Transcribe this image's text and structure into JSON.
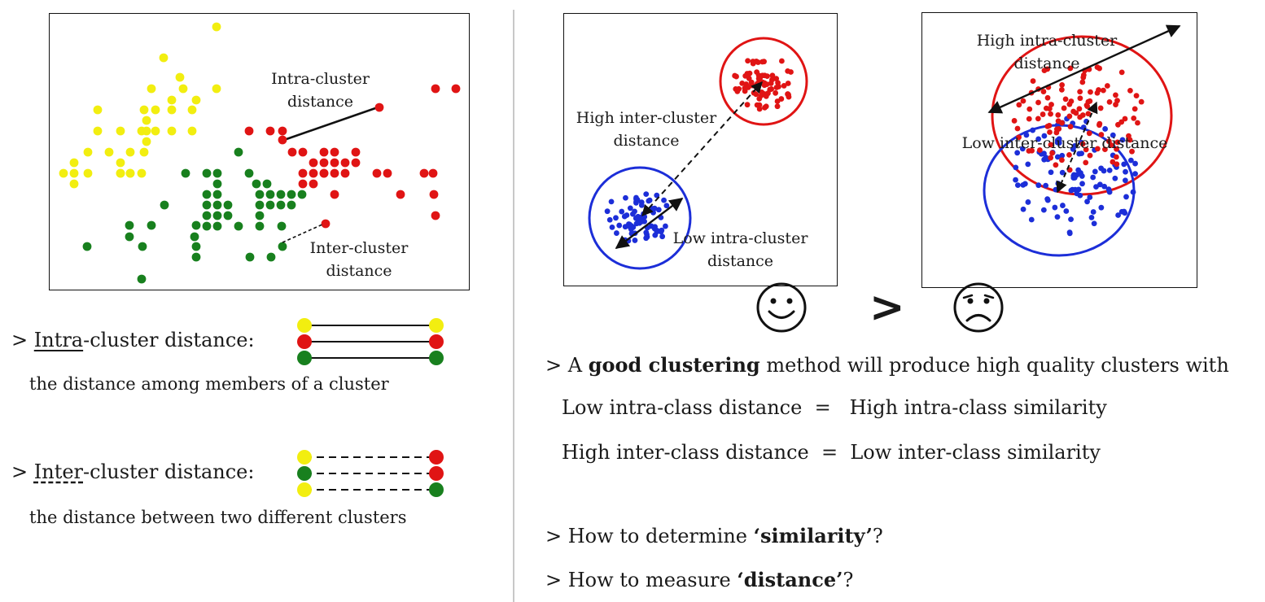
{
  "left_plot": {
    "labels": {
      "intra_line1": "Intra-cluster",
      "intra_line2": "distance",
      "inter_line1": "Inter-cluster",
      "inter_line2": "distance"
    }
  },
  "intra_definition": {
    "prefix": "> ",
    "term": "Intra",
    "rest": "-cluster distance:",
    "description": "the distance among members of a cluster"
  },
  "inter_definition": {
    "prefix": "> ",
    "term": "Inter",
    "rest": "-cluster distance:",
    "description": "the distance between two different clusters"
  },
  "good_plot": {
    "label_high_inter_1": "High inter-cluster",
    "label_high_inter_2": "distance",
    "label_low_intra_1": "Low intra-cluster",
    "label_low_intra_2": "distance"
  },
  "bad_plot": {
    "label_high_intra_1": "High intra-cluster",
    "label_high_intra_2": "distance",
    "label_low_inter": "Low inter-cluster distance"
  },
  "comparison_symbol": ">",
  "colors": {
    "yellow": "#f2ee10",
    "red": "#e01414",
    "green": "#18801e",
    "blue": "#1c2ed8"
  },
  "statements": {
    "good_prefix": "> A ",
    "good_bold": "good clustering",
    "good_rest": " method will produce high quality clusters with",
    "intra_eq_left": "Low intra-class distance",
    "intra_eq_sign": "=",
    "intra_eq_right": "High intra-class similarity",
    "inter_eq_left": "High inter-class distance",
    "inter_eq_sign": "=",
    "inter_eq_right": "Low inter-class similarity",
    "q1_prefix": "> How to determine ",
    "q1_bold": "‘similarity’",
    "q1_suffix": "?",
    "q2_prefix": "> How to measure ",
    "q2_bold": "‘distance’",
    "q2_suffix": "?"
  }
}
